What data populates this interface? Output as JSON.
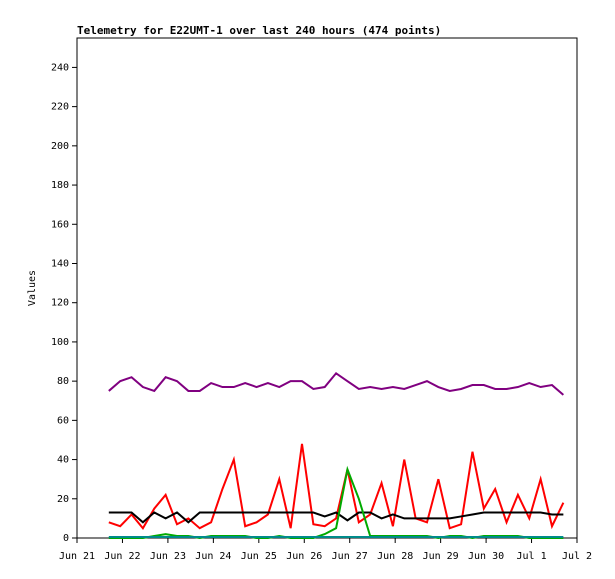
{
  "chart_data": {
    "type": "line",
    "title": "Telemetry for E22UMT-1 over last 240 hours (474 points)",
    "y_label": "Values",
    "x": [
      0.7,
      0.95,
      1.2,
      1.45,
      1.7,
      1.95,
      2.2,
      2.45,
      2.7,
      2.95,
      3.2,
      3.45,
      3.7,
      3.95,
      4.2,
      4.45,
      4.7,
      4.95,
      5.2,
      5.45,
      5.7,
      5.95,
      6.2,
      6.45,
      6.7,
      6.95,
      7.2,
      7.45,
      7.7,
      7.95,
      8.2,
      8.45,
      8.7,
      8.95,
      9.2,
      9.45,
      9.7,
      9.95,
      10.2,
      10.45,
      10.7
    ],
    "series": [
      {
        "color": "#800080",
        "values": [
          75,
          80,
          82,
          77,
          75,
          82,
          80,
          75,
          75,
          79,
          77,
          77,
          79,
          77,
          79,
          77,
          80,
          80,
          76,
          77,
          84,
          80,
          76,
          77,
          76,
          77,
          76,
          78,
          80,
          77,
          75,
          76,
          78,
          78,
          76,
          76,
          77,
          79,
          77,
          78,
          73
        ]
      },
      {
        "color": "#ff0000",
        "values": [
          8,
          6,
          12,
          5,
          15,
          22,
          7,
          10,
          5,
          8,
          25,
          40,
          6,
          8,
          12,
          30,
          5,
          48,
          7,
          6,
          10,
          35,
          8,
          12,
          28,
          6,
          40,
          10,
          8,
          30,
          5,
          7,
          44,
          15,
          25,
          8,
          22,
          10,
          30,
          6,
          18
        ]
      },
      {
        "color": "#000000",
        "values": [
          13,
          13,
          13,
          8,
          13,
          10,
          13,
          8,
          13,
          13,
          13,
          13,
          13,
          13,
          13,
          13,
          13,
          13,
          13,
          11,
          13,
          9,
          13,
          13,
          10,
          12,
          10,
          10,
          10,
          10,
          10,
          11,
          12,
          13,
          13,
          13,
          13,
          13,
          13,
          12,
          12
        ]
      },
      {
        "color": "#00aa00",
        "values": [
          0,
          0,
          0,
          0,
          1,
          2,
          1,
          1,
          0,
          1,
          1,
          1,
          1,
          0,
          0,
          1,
          0,
          0,
          0,
          2,
          5,
          35,
          20,
          1,
          1,
          1,
          1,
          1,
          1,
          0,
          1,
          1,
          0,
          1,
          1,
          1,
          1,
          0,
          0,
          0,
          0
        ]
      },
      {
        "color": "#008b8b",
        "values": [
          0.5,
          0.5,
          0.5,
          0.5,
          0.5,
          0.5,
          0.5,
          0.5,
          0.5,
          0.5,
          0.5,
          0.5,
          0.5,
          0.5,
          0.5,
          0.5,
          0.5,
          0.5,
          0.5,
          0.5,
          0.5,
          0.5,
          0.5,
          0.5,
          0.5,
          0.5,
          0.5,
          0.5,
          0.5,
          0.5,
          0.5,
          0.5,
          0.5,
          0.5,
          0.5,
          0.5,
          0.5,
          0.5,
          0.5,
          0.5,
          0.5
        ]
      }
    ],
    "xlim": [
      0,
      11
    ],
    "xticks": [
      {
        "value": 0,
        "label": "Jun 21"
      },
      {
        "value": 1,
        "label": "Jun 22"
      },
      {
        "value": 2,
        "label": "Jun 23"
      },
      {
        "value": 3,
        "label": "Jun 24"
      },
      {
        "value": 4,
        "label": "Jun 25"
      },
      {
        "value": 5,
        "label": "Jun 26"
      },
      {
        "value": 6,
        "label": "Jun 27"
      },
      {
        "value": 7,
        "label": "Jun 28"
      },
      {
        "value": 8,
        "label": "Jun 29"
      },
      {
        "value": 9,
        "label": "Jun 30"
      },
      {
        "value": 10,
        "label": "Jul 1"
      },
      {
        "value": 11,
        "label": "Jul 2"
      }
    ],
    "ylim": [
      0,
      255
    ],
    "yticks": [
      0,
      20,
      40,
      60,
      80,
      100,
      120,
      140,
      160,
      180,
      200,
      220,
      240
    ]
  }
}
